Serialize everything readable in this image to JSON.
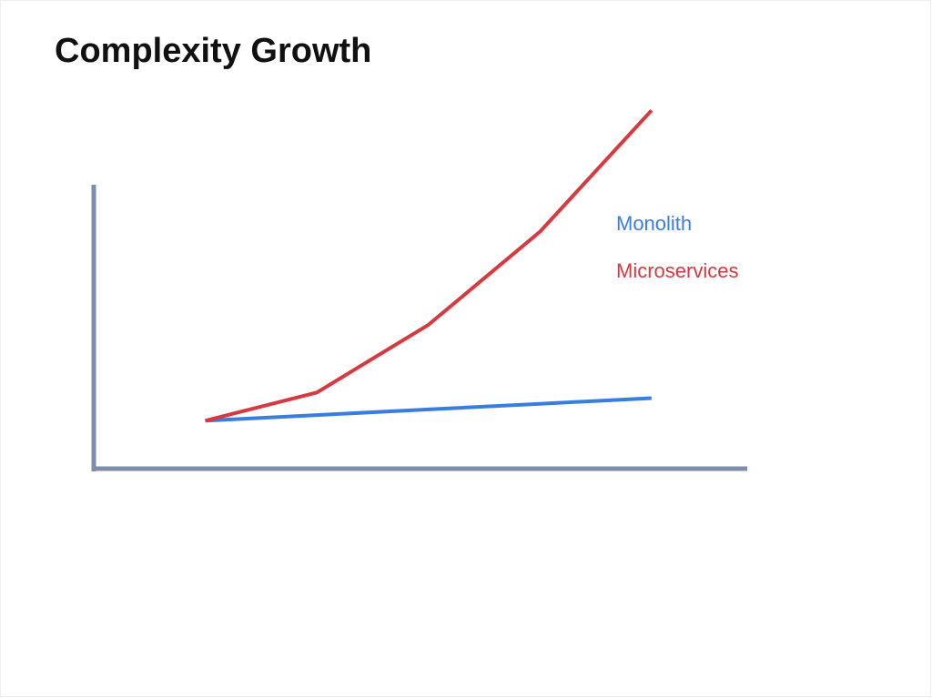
{
  "chart_data": {
    "type": "line",
    "title": "Complexity Growth",
    "x": [
      1,
      2,
      3,
      4,
      5
    ],
    "xlim": [
      0,
      5.85
    ],
    "ylim": [
      0,
      10
    ],
    "series": [
      {
        "name": "Monolith",
        "color": "#3a7de0",
        "values": [
          1.7,
          1.9,
          2.1,
          2.3,
          2.5
        ]
      },
      {
        "name": "Microservices",
        "color": "#d9383e",
        "values": [
          1.7,
          2.7,
          5.1,
          8.4,
          12.7
        ]
      }
    ]
  }
}
